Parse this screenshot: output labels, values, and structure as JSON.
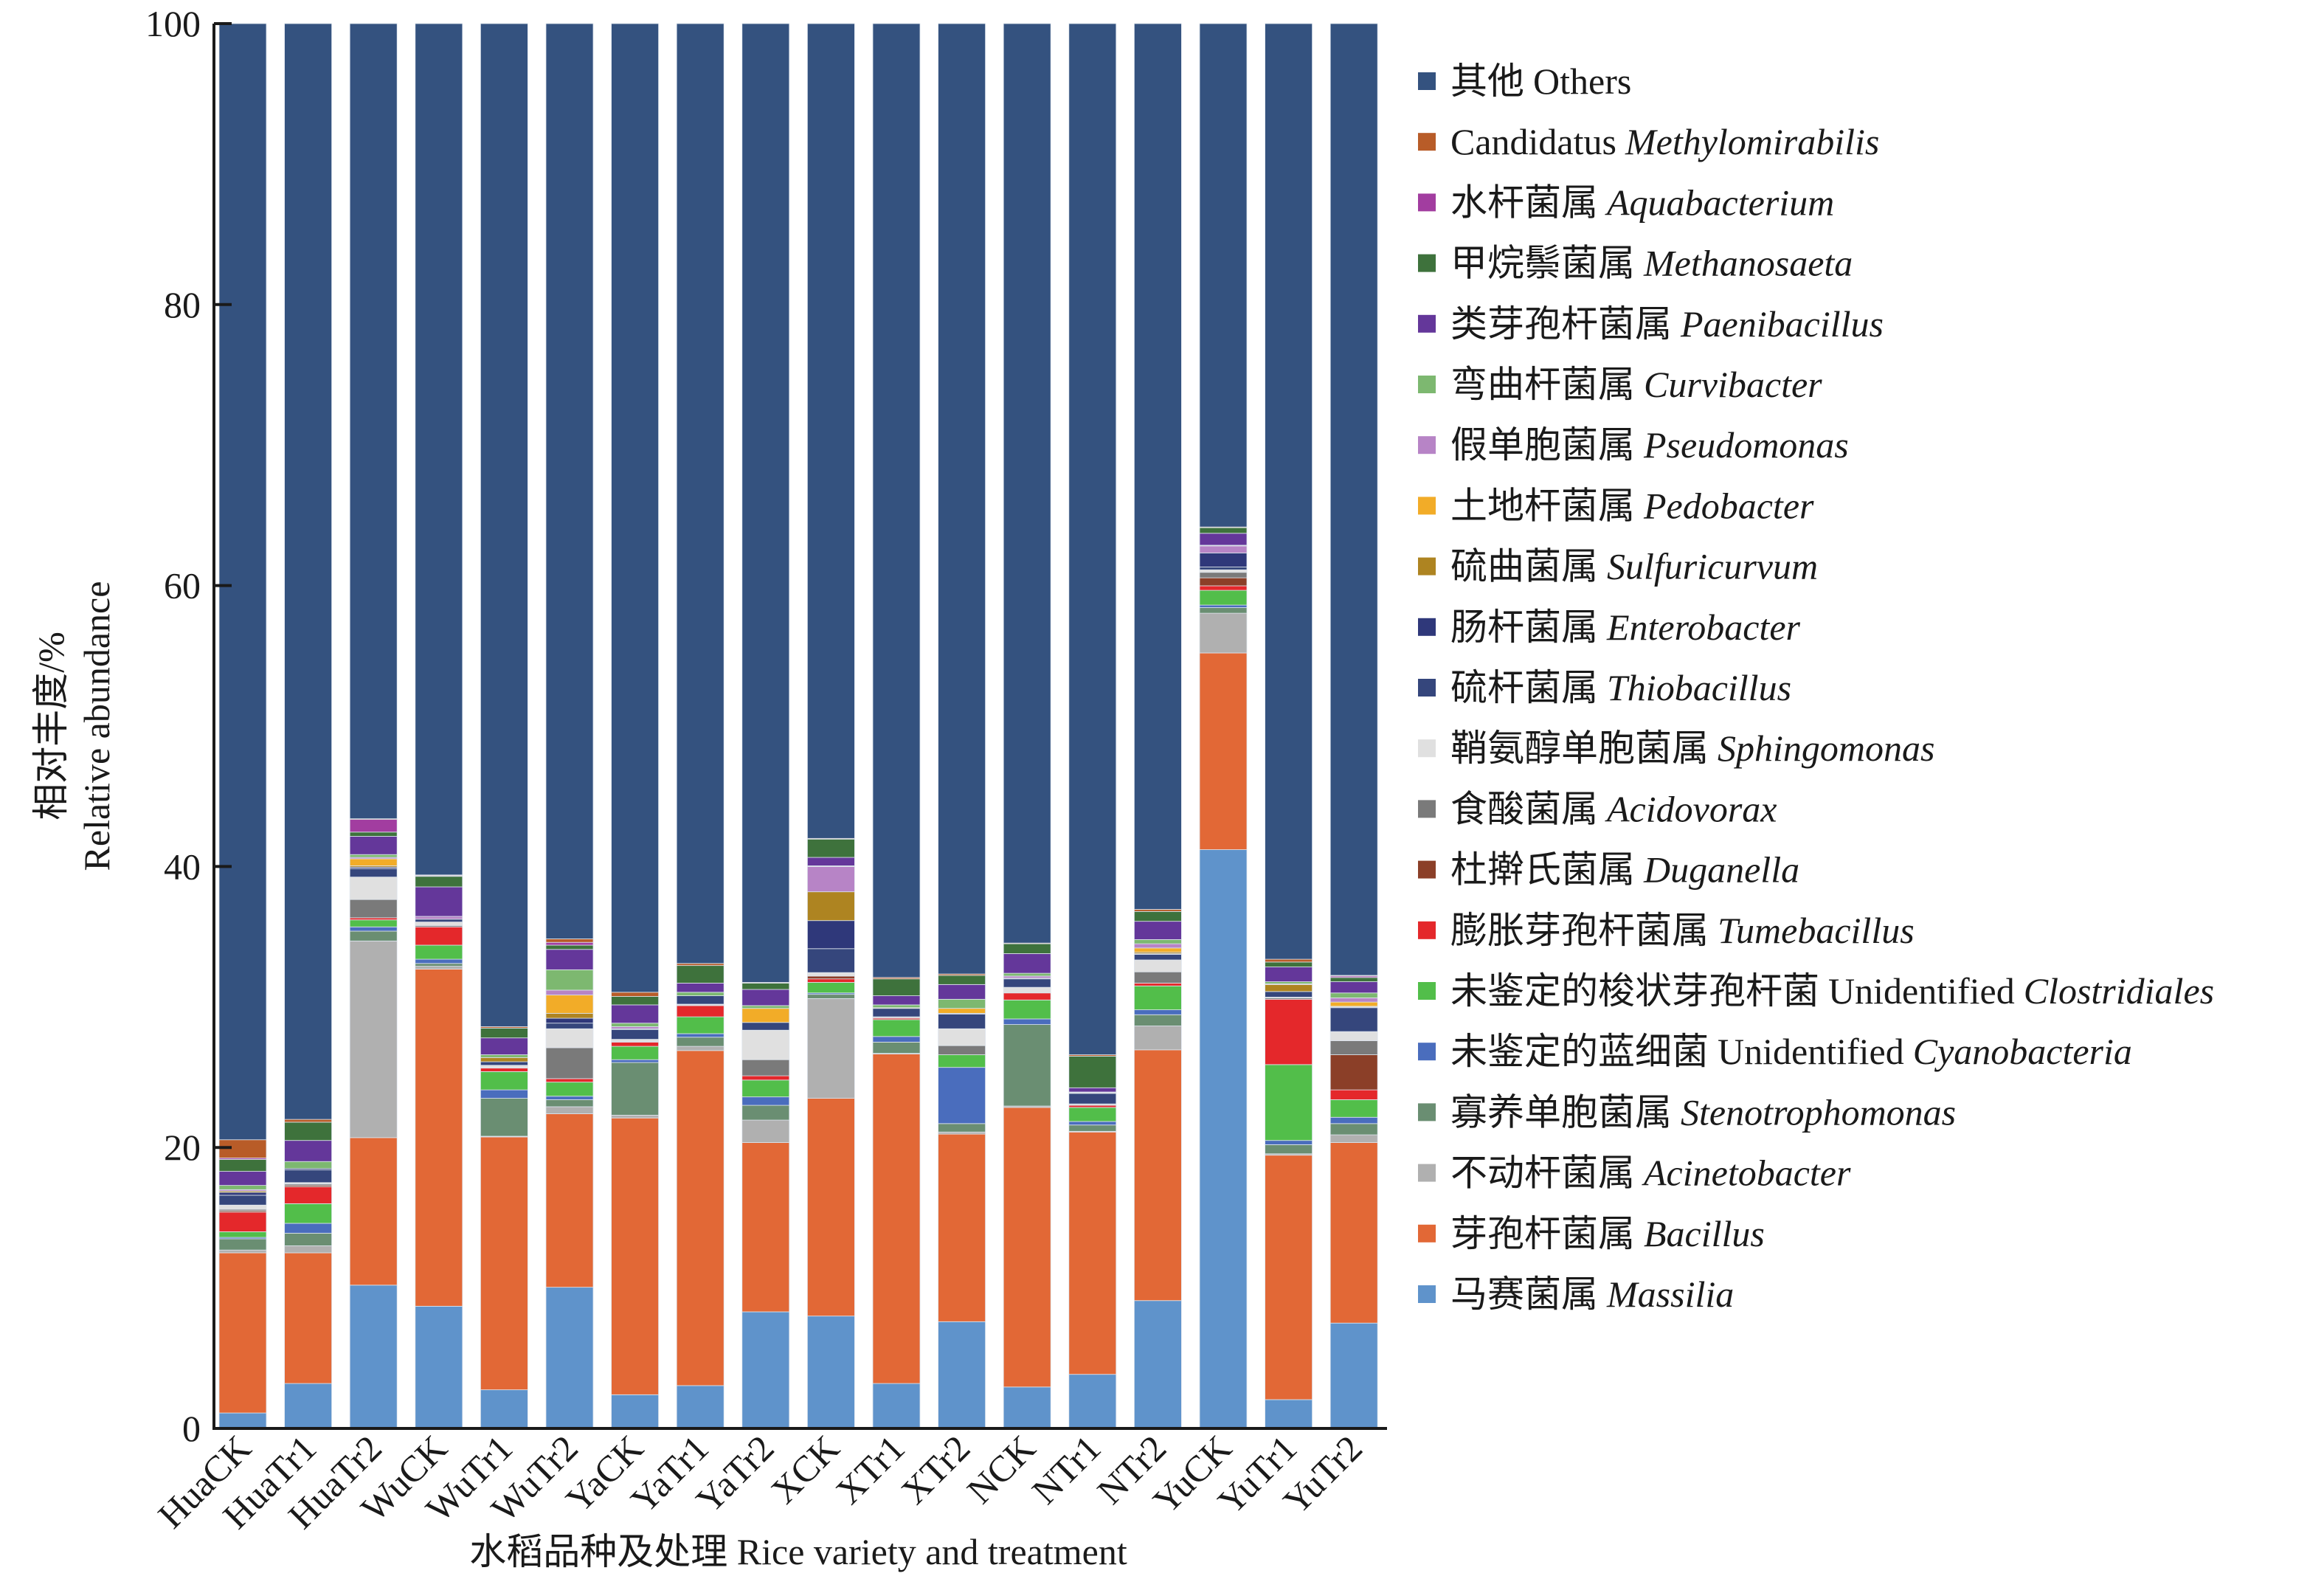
{
  "chart_data": {
    "type": "stacked-bar",
    "title": "",
    "xlabel": "水稻品种及处理 Rice variety and treatment",
    "ylabel_cn": "相对丰度/%",
    "ylabel_en": "Relative abundance",
    "ylim": [
      0,
      100
    ],
    "yticks": [
      0,
      20,
      40,
      60,
      80,
      100
    ],
    "grid": false,
    "legend_position": "right",
    "categories": [
      "HuaCK",
      "HuaTr1",
      "HuaTr2",
      "WuCK",
      "WuTr1",
      "WuTr2",
      "YaCK",
      "YaTr1",
      "YaTr2",
      "XCK",
      "XTr1",
      "XTr2",
      "NCK",
      "NTr1",
      "NTr2",
      "YuCK",
      "YuTr1",
      "YuTr2"
    ],
    "series": [
      {
        "cn": "马赛菌属",
        "plain": "",
        "italic": "Massilia",
        "color": "#5F93CB",
        "values": [
          1.1,
          3.2,
          10.2,
          8.7,
          2.75,
          10.05,
          2.4,
          3.05,
          8.3,
          8.0,
          3.2,
          7.6,
          2.95,
          3.85,
          9.1,
          41.2,
          2.05,
          7.5
        ]
      },
      {
        "cn": "芽孢杆菌属",
        "plain": "",
        "italic": "Bacillus",
        "color": "#E26836",
        "values": [
          11.4,
          9.3,
          10.5,
          24.0,
          18.0,
          12.35,
          19.7,
          23.85,
          12.05,
          15.5,
          23.45,
          13.35,
          19.9,
          17.25,
          17.85,
          14.0,
          17.4,
          12.85
        ]
      },
      {
        "cn": "不动杆菌属",
        "plain": "",
        "italic": "Acinetobacter",
        "color": "#B0B0B0",
        "values": [
          0.2,
          0.5,
          14.0,
          0.2,
          0.05,
          0.5,
          0.2,
          0.3,
          1.6,
          7.1,
          0.05,
          0.15,
          0.1,
          0.05,
          1.7,
          2.83,
          0.1,
          0.55
        ]
      },
      {
        "cn": "寡养单胞菌属",
        "plain": "",
        "italic": "Stenotrophomonas",
        "color": "#6A8E72",
        "values": [
          0.8,
          0.9,
          0.7,
          0.2,
          2.7,
          0.5,
          3.75,
          0.65,
          1.05,
          0.3,
          0.8,
          0.6,
          5.8,
          0.45,
          0.8,
          0.4,
          0.65,
          0.8
        ]
      },
      {
        "cn": "未鉴定的蓝细菌",
        "plain": "Unidentified",
        "italic": "Cyanobacteria",
        "color": "#4A6DBD",
        "values": [
          0.1,
          0.7,
          0.3,
          0.3,
          0.6,
          0.25,
          0.2,
          0.25,
          0.6,
          0.1,
          0.4,
          4.0,
          0.4,
          0.25,
          0.35,
          0.18,
          0.3,
          0.45
        ]
      },
      {
        "cn": "未鉴定的梭状芽孢杆菌",
        "plain": "Unidentified",
        "italic": "Clostridiales",
        "color": "#52BE4A",
        "values": [
          0.4,
          1.4,
          0.5,
          1.0,
          1.3,
          1.0,
          0.95,
          1.2,
          1.2,
          0.75,
          1.2,
          0.9,
          1.35,
          1.0,
          1.7,
          1.05,
          5.4,
          1.25
        ]
      },
      {
        "cn": "膨胀芽孢杆菌属",
        "plain": "",
        "italic": "Tumebacillus",
        "color": "#E4282B",
        "values": [
          1.4,
          1.2,
          0.15,
          1.3,
          0.25,
          0.25,
          0.3,
          0.8,
          0.3,
          0.25,
          0.1,
          0.0,
          0.5,
          0.15,
          0.2,
          0.32,
          4.65,
          0.7
        ]
      },
      {
        "cn": "杜擀氏菌属",
        "plain": "",
        "italic": "Duganella",
        "color": "#8B3F28",
        "values": [
          0.1,
          0.1,
          0.0,
          0.0,
          0.0,
          0.0,
          0.0,
          0.05,
          0.0,
          0.2,
          0.05,
          0.0,
          0.0,
          0.0,
          0.0,
          0.57,
          0.0,
          2.5
        ]
      },
      {
        "cn": "食酸菌属",
        "plain": "",
        "italic": "Acidovorax",
        "color": "#7A7A7A",
        "values": [
          0.1,
          0.1,
          1.3,
          0.1,
          0.0,
          2.2,
          0.05,
          0.0,
          1.15,
          0.0,
          0.0,
          0.65,
          0.0,
          0.05,
          0.8,
          0.39,
          0.1,
          1.0
        ]
      },
      {
        "cn": "鞘氨醇单胞菌属",
        "plain": "",
        "italic": "Sphingomonas",
        "color": "#E0E0E0",
        "values": [
          0.3,
          0.1,
          1.6,
          0.25,
          0.2,
          1.35,
          0.15,
          0.05,
          2.1,
          0.25,
          0.05,
          1.2,
          0.4,
          0.05,
          0.85,
          0.18,
          0.05,
          0.65
        ]
      },
      {
        "cn": "硫杆菌属",
        "plain": "",
        "italic": "Thiobacillus",
        "color": "#35467C",
        "values": [
          0.7,
          0.9,
          0.6,
          0.2,
          0.25,
          0.4,
          0.7,
          0.6,
          0.55,
          1.7,
          0.6,
          1.05,
          0.6,
          0.75,
          0.4,
          0.2,
          0.4,
          1.7
        ]
      },
      {
        "cn": "肠杆菌属",
        "plain": "",
        "italic": "Enterobacter",
        "color": "#2F387A",
        "values": [
          0.2,
          0.1,
          0.1,
          0.0,
          0.0,
          0.35,
          0.05,
          0.0,
          0.0,
          2.0,
          0.0,
          0.05,
          0.05,
          0.0,
          0.05,
          1.0,
          0.0,
          0.05
        ]
      },
      {
        "cn": "硫曲菌属",
        "plain": "",
        "italic": "Sulfuricurvum",
        "color": "#AE8421",
        "values": [
          0.1,
          0.0,
          0.1,
          0.0,
          0.3,
          0.35,
          0.0,
          0.0,
          0.0,
          2.05,
          0.0,
          0.0,
          0.0,
          0.0,
          0.1,
          0.0,
          0.5,
          0.05
        ]
      },
      {
        "cn": "土地杆菌属",
        "plain": "",
        "italic": "Pedobacter",
        "color": "#F2AC28",
        "values": [
          0.0,
          0.0,
          0.5,
          0.0,
          0.0,
          1.3,
          0.0,
          0.0,
          1.0,
          0.0,
          0.05,
          0.35,
          0.0,
          0.05,
          0.3,
          0.0,
          0.0,
          0.3
        ]
      },
      {
        "cn": "假单胞菌属",
        "plain": "",
        "italic": "Pseudomonas",
        "color": "#B784C6",
        "values": [
          0.1,
          0.0,
          0.1,
          0.2,
          0.0,
          0.35,
          0.15,
          0.0,
          0.0,
          1.8,
          0.0,
          0.0,
          0.15,
          0.05,
          0.3,
          0.5,
          0.05,
          0.3
        ]
      },
      {
        "cn": "弯曲杆菌属",
        "plain": "",
        "italic": "Curvibacter",
        "color": "#7DB870",
        "values": [
          0.3,
          0.5,
          0.2,
          0.0,
          0.2,
          1.45,
          0.25,
          0.25,
          0.2,
          0.05,
          0.2,
          0.65,
          0.2,
          0.0,
          0.3,
          0.05,
          0.15,
          0.35
        ]
      },
      {
        "cn": "类芽孢杆菌属",
        "plain": "",
        "italic": "Paenibacillus",
        "color": "#64379A",
        "values": [
          1.0,
          1.5,
          1.3,
          2.1,
          1.2,
          1.45,
          1.3,
          0.65,
          1.15,
          0.6,
          0.65,
          1.05,
          1.4,
          0.3,
          1.3,
          0.85,
          1.05,
          0.8
        ]
      },
      {
        "cn": "甲烷鬃菌属",
        "plain": "",
        "italic": "Methanosaeta",
        "color": "#3E723C",
        "values": [
          0.85,
          1.3,
          0.3,
          0.75,
          0.7,
          0.3,
          0.6,
          1.25,
          0.45,
          1.3,
          1.2,
          0.65,
          0.7,
          2.25,
          0.7,
          0.4,
          0.35,
          0.3
        ]
      },
      {
        "cn": "水杆菌属",
        "plain": "",
        "italic": "Aquabacterium",
        "color": "#A23DA0",
        "values": [
          0.1,
          0.0,
          0.9,
          0.05,
          0.0,
          0.2,
          0.0,
          0.0,
          0.0,
          0.0,
          0.0,
          0.0,
          0.0,
          0.0,
          0.0,
          0.0,
          0.0,
          0.1
        ]
      },
      {
        "cn": "",
        "plain": "Candidatus",
        "italic": "Methylomirabilis",
        "color": "#B85C28",
        "values": [
          1.3,
          0.2,
          0.05,
          0.05,
          0.1,
          0.25,
          0.3,
          0.15,
          0.05,
          0.05,
          0.1,
          0.1,
          0.05,
          0.1,
          0.15,
          0.05,
          0.2,
          0.05
        ]
      },
      {
        "cn": "其他",
        "plain": "Others",
        "italic": "",
        "color": "#34527F",
        "values": [
          79.45,
          78.0,
          56.6,
          60.6,
          71.4,
          65.15,
          68.95,
          66.9,
          68.25,
          58.0,
          67.9,
          67.65,
          65.45,
          73.4,
          63.05,
          35.83,
          66.6,
          67.75
        ]
      }
    ]
  }
}
